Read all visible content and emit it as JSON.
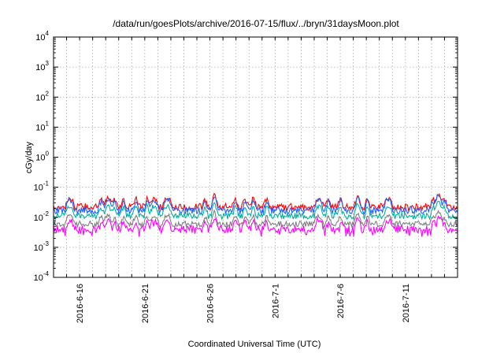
{
  "chart_data": {
    "type": "line",
    "title": "/data/run/goesPlots/archive/2016-07-15/flux/../bryn/31daysMoon.plot",
    "xlabel": "Coordinated Universal Time (UTC)",
    "ylabel": "cGy/day",
    "yscale": "log",
    "ylim": [
      0.0001,
      10000
    ],
    "xlim": [
      "2016-06-14",
      "2016-07-15"
    ],
    "grid": true,
    "x_ticks": [
      "2016-6-16",
      "2016-6-21",
      "2016-6-26",
      "2016-7-1",
      "2016-7-6",
      "2016-7-11"
    ],
    "y_ticks": [
      {
        "base": "10",
        "exp": "-4"
      },
      {
        "base": "10",
        "exp": "-3"
      },
      {
        "base": "10",
        "exp": "-2"
      },
      {
        "base": "10",
        "exp": "-1"
      },
      {
        "base": "10",
        "exp": "0"
      },
      {
        "base": "10",
        "exp": "1"
      },
      {
        "base": "10",
        "exp": "2"
      },
      {
        "base": "10",
        "exp": "3"
      },
      {
        "base": "10",
        "exp": "4"
      }
    ],
    "series": [
      {
        "color": "#ff0000",
        "base": 0.022,
        "spread": 0.55,
        "peak": 0.045
      },
      {
        "color": "#2060ff",
        "base": 0.017,
        "spread": 0.55,
        "peak": 0.04
      },
      {
        "color": "#00b0a0",
        "base": 0.011,
        "spread": 0.5,
        "peak": 0.025
      },
      {
        "color": "#808080",
        "base": 0.006,
        "spread": 0.45,
        "peak": 0.012
      },
      {
        "color": "#ff00ff",
        "base": 0.004,
        "spread": 0.6,
        "peak": 0.008
      }
    ]
  }
}
